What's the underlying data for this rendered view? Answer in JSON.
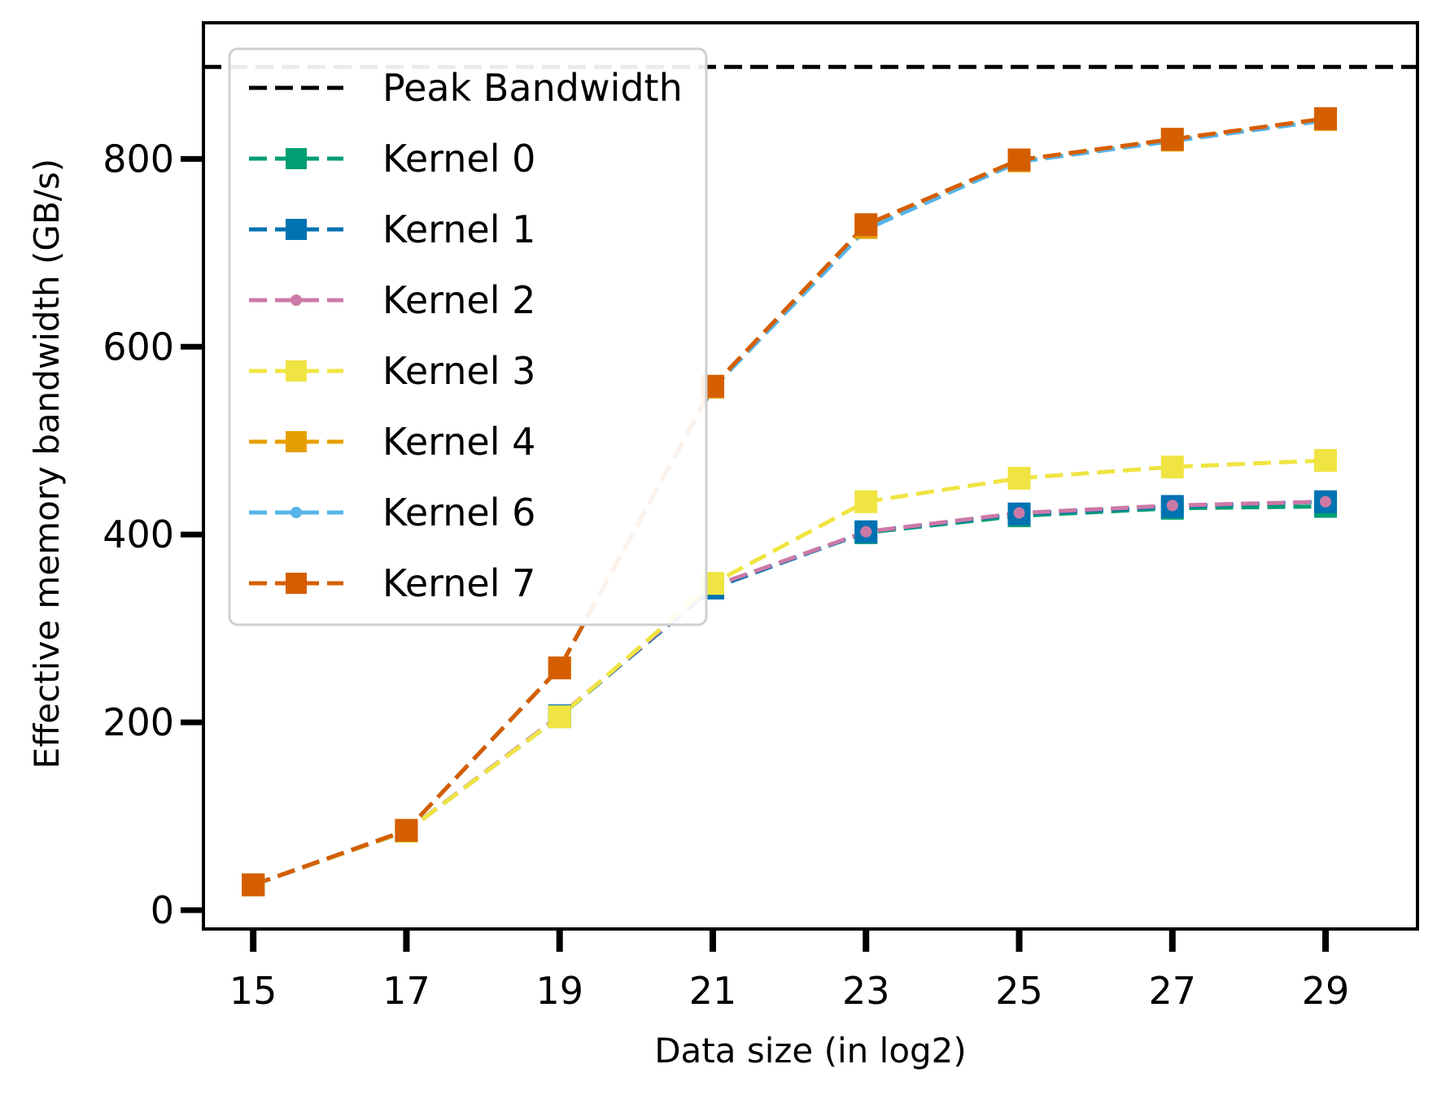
{
  "chart_data": {
    "type": "line",
    "title": "",
    "xlabel": "Data size (in log2)",
    "ylabel": "Effective memory bandwidth (GB/s)",
    "x": [
      15,
      17,
      19,
      21,
      23,
      25,
      27,
      29
    ],
    "xticks": [
      "15",
      "17",
      "19",
      "21",
      "23",
      "25",
      "27",
      "29"
    ],
    "yticks": [
      "0",
      "200",
      "400",
      "600",
      "800"
    ],
    "xlim": [
      14.35,
      30.2
    ],
    "ylim": [
      -20,
      945
    ],
    "grid": false,
    "legend_position": "top-left",
    "peak": {
      "name": "Peak Bandwidth",
      "value": 898,
      "color": "#000000"
    },
    "series": [
      {
        "name": "Kernel 0",
        "color": "#009E73",
        "marker": "square",
        "values": [
          27,
          84,
          206,
          345,
          402,
          420,
          428,
          430
        ]
      },
      {
        "name": "Kernel 1",
        "color": "#0072B2",
        "marker": "square",
        "values": [
          27,
          84,
          207,
          343,
          403,
          422,
          430,
          435
        ]
      },
      {
        "name": "Kernel 2",
        "color": "#CC79A7",
        "marker": "dot",
        "values": [
          27,
          84,
          207,
          345,
          403,
          423,
          431,
          435
        ]
      },
      {
        "name": "Kernel 3",
        "color": "#F0E442",
        "marker": "square",
        "values": [
          27,
          84,
          206,
          348,
          435,
          460,
          472,
          479
        ]
      },
      {
        "name": "Kernel 4",
        "color": "#E69F00",
        "marker": "square",
        "values": [
          27,
          85,
          258,
          557,
          727,
          798,
          820,
          842
        ]
      },
      {
        "name": "Kernel 6",
        "color": "#56B4E9",
        "marker": "dot",
        "values": [
          27,
          85,
          258,
          556,
          725,
          797,
          819,
          841
        ]
      },
      {
        "name": "Kernel 7",
        "color": "#D55E00",
        "marker": "square",
        "values": [
          27,
          85,
          258,
          558,
          730,
          799,
          821,
          843
        ]
      }
    ]
  }
}
